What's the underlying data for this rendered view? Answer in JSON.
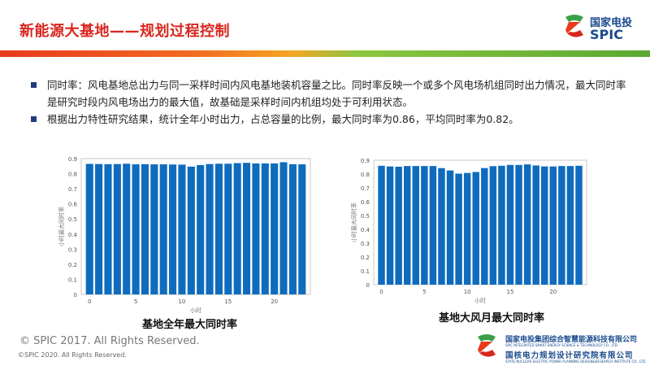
{
  "header": {
    "title": "新能源大基地——规划过程控制",
    "logo_cn": "国家电投",
    "logo_en": "SPIC"
  },
  "bullets": [
    "同时率：风电基地总出力与同一采样时间内风电基地装机容量之比。同时率反映一个或多个风电场机组同时出力情况，最大同时率是研究时段内风电场出力的最大值，故基础是采样时间内机组均处于可利用状态。",
    "根据出力特性研究结果，统计全年小时出力，占总容量的比例，最大同时率为0.86，平均同时率为0.82。"
  ],
  "chart_data": [
    {
      "type": "bar",
      "title": "基地全年最大同时率",
      "xlabel": "小时",
      "ylabel": "小时最大同时率",
      "x": [
        0,
        1,
        2,
        3,
        4,
        5,
        6,
        7,
        8,
        9,
        10,
        11,
        12,
        13,
        14,
        15,
        16,
        17,
        18,
        19,
        20,
        21,
        22,
        23
      ],
      "values": [
        0.865,
        0.864,
        0.863,
        0.864,
        0.866,
        0.862,
        0.863,
        0.862,
        0.862,
        0.861,
        0.86,
        0.847,
        0.857,
        0.864,
        0.866,
        0.866,
        0.87,
        0.872,
        0.868,
        0.868,
        0.868,
        0.876,
        0.863,
        0.862
      ],
      "ylim": [
        0,
        0.9
      ],
      "yticks": [
        "0",
        "0.1",
        "0.2",
        "0.3",
        "0.4",
        "0.5",
        "0.6",
        "0.7",
        "0.8",
        "0.9"
      ],
      "xticks": [
        "0",
        "5",
        "10",
        "15",
        "20"
      ],
      "color": "#0f6cbd"
    },
    {
      "type": "bar",
      "title": "基地大风月最大同时率",
      "xlabel": "小时",
      "ylabel": "小时最大同时率",
      "x": [
        0,
        1,
        2,
        3,
        4,
        5,
        6,
        7,
        8,
        9,
        10,
        11,
        12,
        13,
        14,
        15,
        16,
        17,
        18,
        19,
        20,
        21,
        22,
        23
      ],
      "values": [
        0.86,
        0.855,
        0.853,
        0.858,
        0.858,
        0.858,
        0.858,
        0.843,
        0.826,
        0.803,
        0.808,
        0.815,
        0.843,
        0.857,
        0.86,
        0.866,
        0.866,
        0.87,
        0.862,
        0.855,
        0.855,
        0.858,
        0.858,
        0.86
      ],
      "ylim": [
        0,
        0.9
      ],
      "yticks": [
        "0",
        "0.1",
        "0.2",
        "0.3",
        "0.4",
        "0.5",
        "0.6",
        "0.7",
        "0.8",
        "0.9"
      ],
      "xticks": [
        "0",
        "5",
        "10",
        "15",
        "20"
      ],
      "color": "#0f6cbd"
    }
  ],
  "footer": {
    "copyright_2017": "© SPIC 2017. All Rights Reserved.",
    "copyright_2020": "©SPIC 2020. All Rights Reserved.",
    "org1_cn": "国家电投集团综合智慧能源科技有限公司",
    "org1_en": "SPIC INTEGRATED SMART ENERGY SCIENCE & TECHNOLOGY CO., LTD.",
    "org2_cn": "国核电力规划设计研究院有限公司",
    "org2_en": "STATE NUCLEAR ELECTRIC POWER PLANNING DESIGN&RESEARCH INSTITUTE CO., LTD."
  }
}
